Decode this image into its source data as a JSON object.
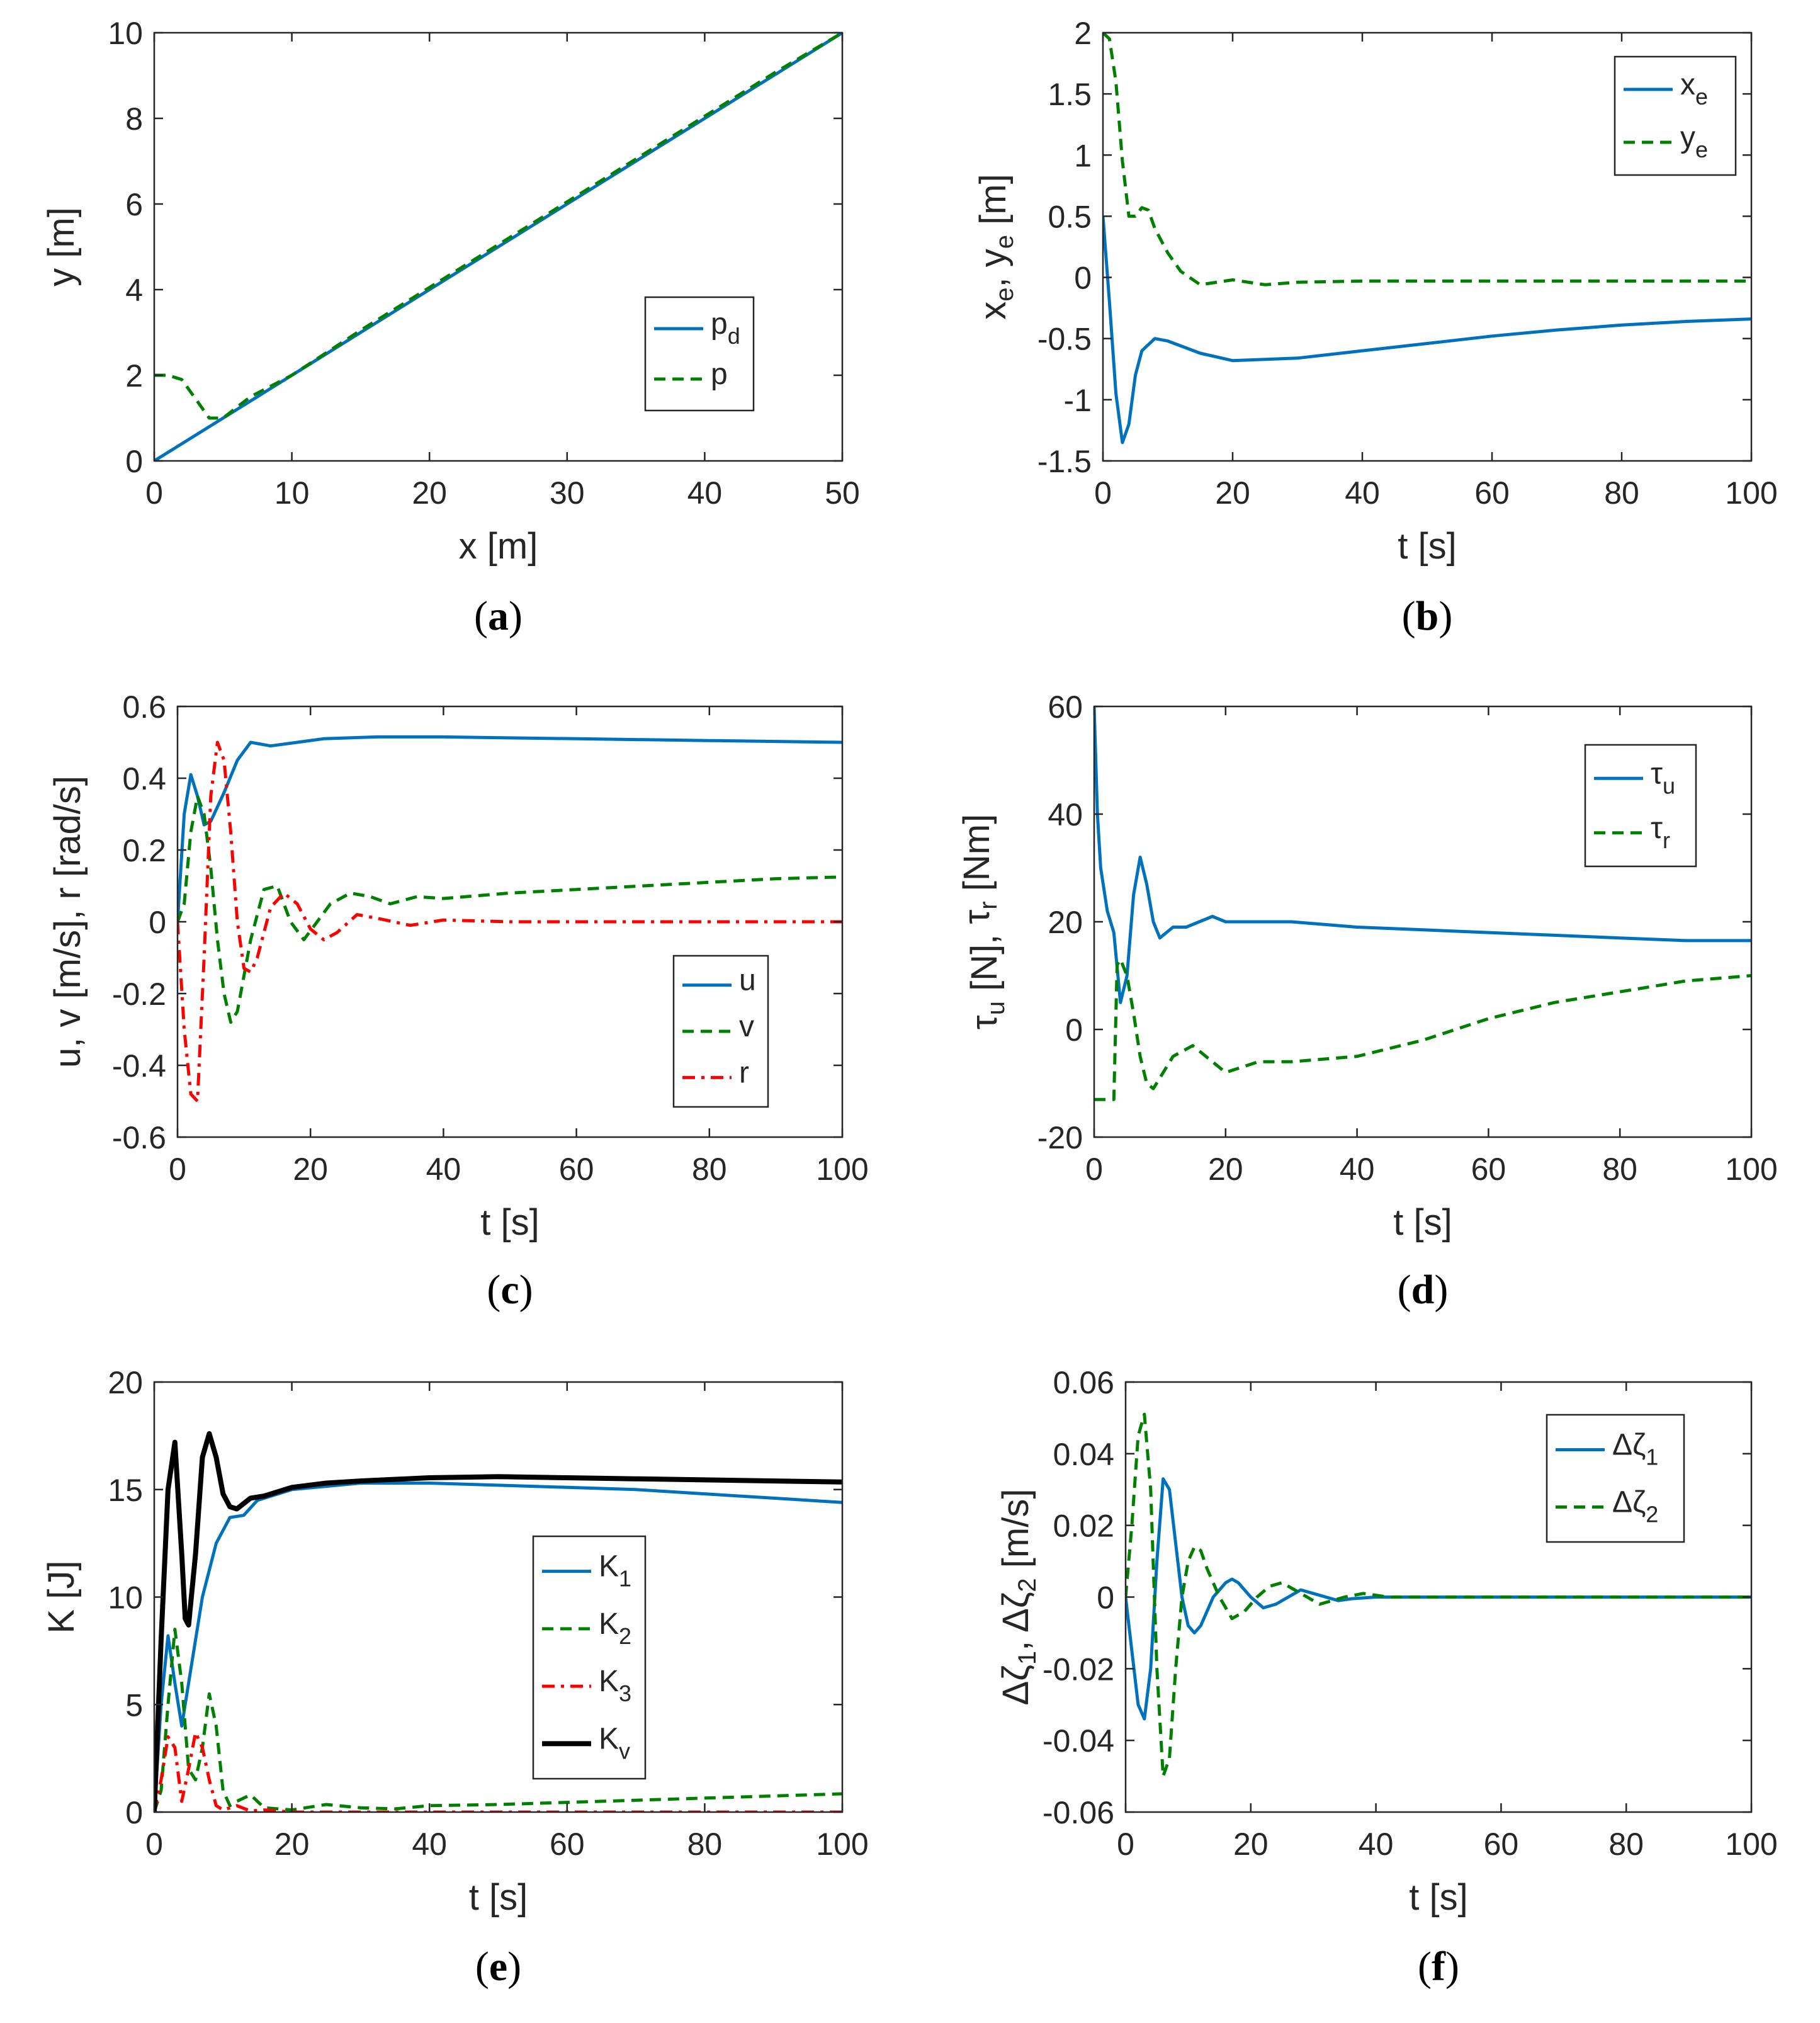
{
  "colors": {
    "blue": "#0072BD",
    "green": "#008000",
    "red": "#FF0000",
    "black": "#000000",
    "axis": "#262626"
  },
  "chart_data": [
    {
      "id": "a",
      "type": "line",
      "caption_letter": "a",
      "xlabel": "x [m]",
      "ylabel": "y [m]",
      "xlim": [
        0,
        50
      ],
      "ylim": [
        0,
        10
      ],
      "xticks": [
        0,
        10,
        20,
        30,
        40,
        50
      ],
      "xtick_labels": [
        "0",
        "10",
        "20",
        "30",
        "40",
        "50"
      ],
      "yticks": [
        0,
        2,
        4,
        6,
        8,
        10
      ],
      "ytick_labels": [
        "0",
        "2",
        "4",
        "6",
        "8",
        "10"
      ],
      "legend": {
        "location": "middle-right"
      },
      "series": [
        {
          "name": "p_d",
          "label_main": "p",
          "label_sub": "d",
          "color": "#0072BD",
          "style": "solid",
          "x": [
            0,
            50
          ],
          "y": [
            0,
            10
          ]
        },
        {
          "name": "p",
          "label_main": "p",
          "label_sub": "",
          "color": "#008000",
          "style": "dashed",
          "x": [
            0,
            1,
            2,
            3,
            4,
            5,
            7,
            10,
            15,
            20,
            25,
            30,
            35,
            40,
            45,
            50
          ],
          "y": [
            2,
            2,
            1.9,
            1.45,
            1.0,
            1.0,
            1.5,
            2.0,
            3.05,
            4.05,
            5.05,
            6.05,
            7.05,
            8.05,
            9.05,
            10
          ]
        }
      ]
    },
    {
      "id": "b",
      "type": "line",
      "caption_letter": "b",
      "xlabel": "t [s]",
      "ylabel_parts": [
        "x",
        "e",
        ", y",
        "e",
        " [m]"
      ],
      "xlim": [
        0,
        100
      ],
      "ylim": [
        -1.5,
        2
      ],
      "xticks": [
        0,
        20,
        40,
        60,
        80,
        100
      ],
      "xtick_labels": [
        "0",
        "20",
        "40",
        "60",
        "80",
        "100"
      ],
      "yticks": [
        -1.5,
        -1,
        -0.5,
        0,
        0.5,
        1,
        1.5,
        2
      ],
      "ytick_labels": [
        "-1.5",
        "-1",
        "-0.5",
        "0",
        "0.5",
        "1",
        "1.5",
        "2"
      ],
      "legend": {
        "location": "top-right"
      },
      "series": [
        {
          "name": "x_e",
          "label_main": "x",
          "label_sub": "e",
          "color": "#0072BD",
          "style": "solid",
          "x": [
            0,
            1,
            2,
            3,
            4,
            5,
            6,
            8,
            10,
            15,
            20,
            30,
            40,
            50,
            60,
            70,
            80,
            90,
            100
          ],
          "y": [
            0.5,
            -0.2,
            -0.95,
            -1.35,
            -1.2,
            -0.8,
            -0.6,
            -0.5,
            -0.52,
            -0.62,
            -0.68,
            -0.66,
            -0.6,
            -0.54,
            -0.48,
            -0.43,
            -0.39,
            -0.36,
            -0.34
          ]
        },
        {
          "name": "y_e",
          "label_main": "y",
          "label_sub": "e",
          "color": "#008000",
          "style": "dashed",
          "x": [
            0,
            1,
            2,
            3,
            4,
            5,
            6,
            7,
            8,
            10,
            12,
            15,
            20,
            25,
            30,
            40,
            60,
            80,
            100
          ],
          "y": [
            2,
            1.95,
            1.6,
            0.95,
            0.5,
            0.5,
            0.57,
            0.55,
            0.4,
            0.2,
            0.05,
            -0.06,
            -0.02,
            -0.06,
            -0.04,
            -0.03,
            -0.03,
            -0.03,
            -0.03
          ]
        }
      ]
    },
    {
      "id": "c",
      "type": "line",
      "caption_letter": "c",
      "xlabel": "t [s]",
      "ylabel": "u, v [m/s], r [rad/s]",
      "xlim": [
        0,
        100
      ],
      "ylim": [
        -0.6,
        0.6
      ],
      "xticks": [
        0,
        20,
        40,
        60,
        80,
        100
      ],
      "xtick_labels": [
        "0",
        "20",
        "40",
        "60",
        "80",
        "100"
      ],
      "yticks": [
        -0.6,
        -0.4,
        -0.2,
        0,
        0.2,
        0.4,
        0.6
      ],
      "ytick_labels": [
        "-0.6",
        "-0.4",
        "-0.2",
        "0",
        "0.2",
        "0.4",
        "0.6"
      ],
      "legend": {
        "location": "bottom-right"
      },
      "series": [
        {
          "name": "u",
          "label_main": "u",
          "label_sub": "",
          "color": "#0072BD",
          "style": "solid",
          "x": [
            0,
            1,
            2,
            3,
            4,
            5,
            7,
            9,
            11,
            14,
            18,
            22,
            30,
            40,
            60,
            80,
            100
          ],
          "y": [
            0,
            0.3,
            0.41,
            0.35,
            0.27,
            0.28,
            0.36,
            0.45,
            0.5,
            0.49,
            0.5,
            0.51,
            0.515,
            0.515,
            0.51,
            0.505,
            0.5
          ]
        },
        {
          "name": "v",
          "label_main": "v",
          "label_sub": "",
          "color": "#008000",
          "style": "dashed",
          "x": [
            0,
            1,
            2,
            3,
            4,
            5,
            6,
            7,
            8,
            9,
            11,
            13,
            15,
            17,
            19,
            21,
            23,
            26,
            29,
            32,
            36,
            40,
            50,
            60,
            70,
            80,
            90,
            100
          ],
          "y": [
            0,
            0.05,
            0.25,
            0.35,
            0.3,
            0.15,
            -0.05,
            -0.2,
            -0.28,
            -0.25,
            -0.05,
            0.09,
            0.1,
            0.0,
            -0.05,
            0.0,
            0.05,
            0.08,
            0.07,
            0.05,
            0.07,
            0.065,
            0.08,
            0.09,
            0.1,
            0.11,
            0.12,
            0.125
          ]
        },
        {
          "name": "r",
          "label_main": "r",
          "label_sub": "",
          "color": "#FF0000",
          "style": "dashdot",
          "x": [
            0,
            1,
            2,
            3,
            4,
            5,
            6,
            7,
            8,
            9,
            10,
            11,
            12,
            14,
            16,
            18,
            20,
            22,
            24,
            27,
            30,
            35,
            40,
            50,
            60,
            80,
            100
          ],
          "y": [
            0,
            -0.3,
            -0.48,
            -0.5,
            -0.1,
            0.35,
            0.5,
            0.45,
            0.25,
            0.0,
            -0.13,
            -0.14,
            -0.1,
            0.04,
            0.08,
            0.05,
            -0.02,
            -0.05,
            -0.03,
            0.02,
            0.01,
            -0.01,
            0.005,
            0.0,
            0.0,
            0.0,
            0.0
          ]
        }
      ]
    },
    {
      "id": "d",
      "type": "line",
      "caption_letter": "d",
      "xlabel": "t [s]",
      "ylabel_parts": [
        "τ",
        "u",
        " [N], ",
        "τ",
        "r",
        " [Nm]"
      ],
      "xlim": [
        0,
        100
      ],
      "ylim": [
        -20,
        60
      ],
      "xticks": [
        0,
        20,
        40,
        60,
        80,
        100
      ],
      "xtick_labels": [
        "0",
        "20",
        "40",
        "60",
        "80",
        "100"
      ],
      "yticks": [
        -20,
        0,
        20,
        40,
        60
      ],
      "ytick_labels": [
        "-20",
        "0",
        "20",
        "40",
        "60"
      ],
      "legend": {
        "location": "top-right"
      },
      "series": [
        {
          "name": "τ_u",
          "label_main": "τ",
          "label_sub": "u",
          "color": "#0072BD",
          "style": "solid",
          "x": [
            0,
            0.5,
            1,
            2,
            3,
            4,
            5,
            6,
            7,
            8,
            9,
            10,
            12,
            14,
            16,
            18,
            20,
            25,
            30,
            40,
            50,
            60,
            70,
            80,
            90,
            100
          ],
          "y": [
            60,
            40,
            30,
            22,
            18,
            5,
            10,
            25,
            32,
            27,
            20,
            17,
            19,
            19,
            20,
            21,
            20,
            20,
            20,
            19,
            18.5,
            18,
            17.5,
            17,
            16.5,
            16.5
          ]
        },
        {
          "name": "τ_r",
          "label_main": "τ",
          "label_sub": "r",
          "color": "#008000",
          "style": "dashed",
          "x": [
            0,
            3,
            3.5,
            4,
            5,
            6,
            7,
            8,
            9,
            10,
            12,
            15,
            18,
            20,
            25,
            30,
            40,
            50,
            60,
            70,
            80,
            90,
            100
          ],
          "y": [
            -13,
            -13,
            12,
            13,
            10,
            3,
            -5,
            -10,
            -11,
            -9,
            -5,
            -3,
            -6,
            -8,
            -6,
            -6,
            -5,
            -2,
            2,
            5,
            7,
            9,
            10
          ]
        }
      ]
    },
    {
      "id": "e",
      "type": "line",
      "caption_letter": "e",
      "xlabel": "t [s]",
      "ylabel": "K [J]",
      "xlim": [
        0,
        100
      ],
      "ylim": [
        0,
        20
      ],
      "xticks": [
        0,
        20,
        40,
        60,
        80,
        100
      ],
      "xtick_labels": [
        "0",
        "20",
        "40",
        "60",
        "80",
        "100"
      ],
      "yticks": [
        0,
        5,
        10,
        15,
        20
      ],
      "ytick_labels": [
        "0",
        "5",
        "10",
        "15",
        "20"
      ],
      "legend": {
        "location": "bottom-right"
      },
      "series": [
        {
          "name": "K_1",
          "label_main": "K",
          "label_sub": "1",
          "color": "#0072BD",
          "style": "solid",
          "width": 5,
          "x": [
            0,
            1,
            2,
            3,
            4,
            5,
            7,
            9,
            11,
            13,
            15,
            20,
            30,
            40,
            50,
            60,
            70,
            80,
            90,
            100
          ],
          "y": [
            0,
            5,
            8.2,
            6,
            4,
            6,
            10,
            12.5,
            13.7,
            13.8,
            14.5,
            15,
            15.3,
            15.3,
            15.2,
            15.1,
            15.0,
            14.8,
            14.6,
            14.4
          ]
        },
        {
          "name": "K_2",
          "label_main": "K",
          "label_sub": "2",
          "color": "#008000",
          "style": "dashed",
          "width": 5,
          "x": [
            0,
            1,
            2,
            3,
            4,
            5,
            6,
            7,
            8,
            9,
            10,
            11,
            12,
            14,
            16,
            20,
            25,
            30,
            35,
            40,
            50,
            60,
            70,
            80,
            90,
            100
          ],
          "y": [
            0,
            1,
            5,
            8.5,
            6,
            2,
            1.5,
            3,
            5.5,
            4,
            1,
            0.3,
            0.5,
            0.8,
            0.2,
            0.1,
            0.35,
            0.2,
            0.15,
            0.3,
            0.35,
            0.45,
            0.55,
            0.65,
            0.75,
            0.85
          ]
        },
        {
          "name": "K_3",
          "label_main": "K",
          "label_sub": "3",
          "color": "#FF0000",
          "style": "dashdot",
          "width": 5,
          "x": [
            0,
            1,
            2,
            3,
            4,
            5,
            6,
            7,
            8,
            9,
            10,
            11,
            12,
            14,
            16,
            20,
            30,
            40,
            60,
            80,
            100
          ],
          "y": [
            0,
            1.5,
            3.5,
            3.0,
            0.5,
            2.0,
            3.7,
            3.0,
            1.5,
            0.3,
            0.1,
            0.2,
            0.3,
            0.05,
            0.1,
            0.0,
            0.0,
            0.0,
            0.0,
            0.0,
            0.0
          ]
        },
        {
          "name": "K_v",
          "label_main": "K",
          "label_sub": "v",
          "color": "#000000",
          "style": "solid",
          "width": 8,
          "x": [
            0,
            1,
            2,
            3,
            4,
            4.5,
            5,
            6,
            7,
            8,
            9,
            10,
            11,
            12,
            14,
            16,
            20,
            25,
            30,
            40,
            50,
            60,
            70,
            80,
            90,
            100
          ],
          "y": [
            0,
            8,
            15,
            17.2,
            12,
            9,
            8.7,
            12,
            16.5,
            17.6,
            16.5,
            14.8,
            14.2,
            14.1,
            14.6,
            14.7,
            15.1,
            15.3,
            15.4,
            15.55,
            15.6,
            15.55,
            15.5,
            15.45,
            15.4,
            15.35
          ]
        }
      ]
    },
    {
      "id": "f",
      "type": "line",
      "caption_letter": "f",
      "xlabel": "t [s]",
      "ylabel_parts": [
        "Δζ",
        "1",
        ", Δζ",
        "2",
        " [m/s]"
      ],
      "xlim": [
        0,
        100
      ],
      "ylim": [
        -0.06,
        0.06
      ],
      "xticks": [
        0,
        20,
        40,
        60,
        80,
        100
      ],
      "xtick_labels": [
        "0",
        "20",
        "40",
        "60",
        "80",
        "100"
      ],
      "yticks": [
        -0.06,
        -0.04,
        -0.02,
        0,
        0.02,
        0.04,
        0.06
      ],
      "ytick_labels": [
        "-0.06",
        "-0.04",
        "-0.02",
        "0",
        "0.02",
        "0.04",
        "0.06"
      ],
      "legend": {
        "location": "top-right"
      },
      "series": [
        {
          "name": "Δζ_1",
          "label_main": "Δζ",
          "label_sub": "1",
          "color": "#0072BD",
          "style": "solid",
          "x": [
            0,
            1,
            2,
            3,
            4,
            5,
            6,
            7,
            8,
            9,
            10,
            11,
            12,
            14,
            16,
            17,
            18,
            20,
            22,
            24,
            26,
            28,
            30,
            32,
            34,
            36,
            40,
            50,
            60,
            80,
            100
          ],
          "y": [
            0,
            -0.015,
            -0.03,
            -0.034,
            -0.02,
            0.01,
            0.033,
            0.03,
            0.015,
            0.0,
            -0.008,
            -0.01,
            -0.008,
            0.0,
            0.004,
            0.005,
            0.004,
            0.0,
            -0.003,
            -0.002,
            0.0,
            0.002,
            0.001,
            0.0,
            -0.001,
            -0.0005,
            0.0,
            0.0,
            0.0,
            0.0,
            0.0
          ]
        },
        {
          "name": "Δζ_2",
          "label_main": "Δζ",
          "label_sub": "2",
          "color": "#008000",
          "style": "dashed",
          "x": [
            0,
            1,
            2,
            3,
            4,
            5,
            6,
            7,
            8,
            9,
            10,
            11,
            12,
            13,
            15,
            17,
            19,
            21,
            23,
            25,
            27,
            29,
            31,
            33,
            35,
            38,
            42,
            50,
            60,
            80,
            100
          ],
          "y": [
            0,
            0.02,
            0.045,
            0.051,
            0.03,
            -0.02,
            -0.05,
            -0.045,
            -0.02,
            0.0,
            0.01,
            0.014,
            0.013,
            0.008,
            0.0,
            -0.006,
            -0.004,
            0.0,
            0.003,
            0.004,
            0.002,
            0.0,
            -0.002,
            -0.001,
            0.0,
            0.001,
            0.0,
            0.0,
            0.0,
            0.0,
            0.0
          ]
        }
      ]
    }
  ]
}
